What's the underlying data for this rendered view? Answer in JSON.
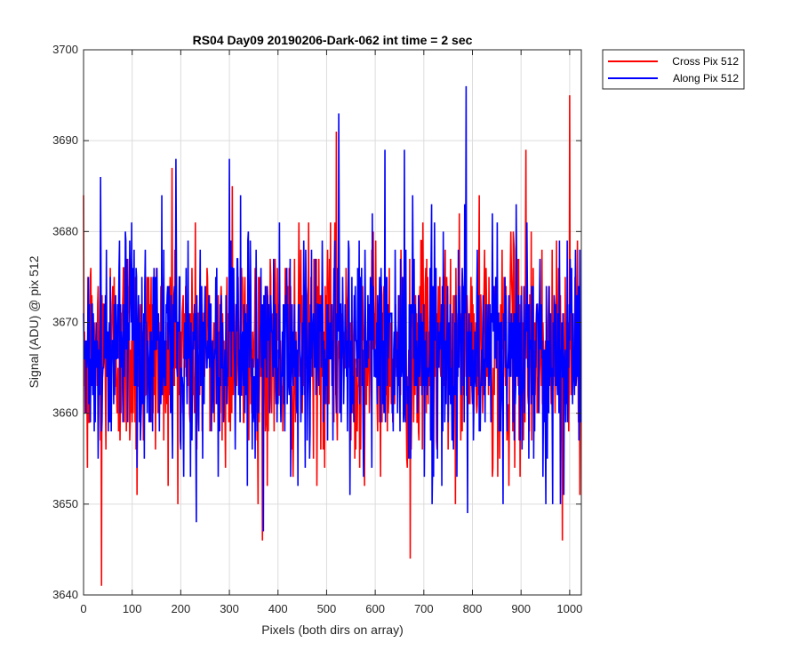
{
  "chart_data": {
    "type": "line",
    "title": "RS04 Day09 20190206-Dark-062 int time = 2 sec",
    "xlabel": "Pixels (both dirs on array)",
    "ylabel": "Signal (ADU) @ pix 512",
    "xlim": [
      0,
      1024
    ],
    "ylim": [
      3640,
      3700
    ],
    "xticks": [
      0,
      100,
      200,
      300,
      400,
      500,
      600,
      700,
      800,
      900,
      1000
    ],
    "yticks": [
      3640,
      3650,
      3660,
      3670,
      3680,
      3690,
      3700
    ],
    "grid": true,
    "legend_position": "outside-top-right",
    "mean": 3667,
    "num_points": 1024,
    "series": [
      {
        "name": "Cross Pix 512",
        "color": "#ff0000",
        "notable_points": [
          [
            8,
            3654
          ],
          [
            37,
            3641
          ],
          [
            110,
            3651
          ],
          [
            182,
            3687
          ],
          [
            306,
            3685
          ],
          [
            368,
            3646
          ],
          [
            520,
            3691
          ],
          [
            672,
            3644
          ],
          [
            910,
            3689
          ],
          [
            985,
            3646
          ],
          [
            1000,
            3695
          ]
        ]
      },
      {
        "name": "Along Pix 512",
        "color": "#0000ff",
        "notable_points": [
          [
            35,
            3686
          ],
          [
            190,
            3688
          ],
          [
            232,
            3648
          ],
          [
            300,
            3688
          ],
          [
            370,
            3647
          ],
          [
            525,
            3693
          ],
          [
            570,
            3675
          ],
          [
            620,
            3689
          ],
          [
            660,
            3689
          ],
          [
            787,
            3696
          ],
          [
            790,
            3649
          ],
          [
            965,
            3650
          ]
        ]
      }
    ]
  }
}
